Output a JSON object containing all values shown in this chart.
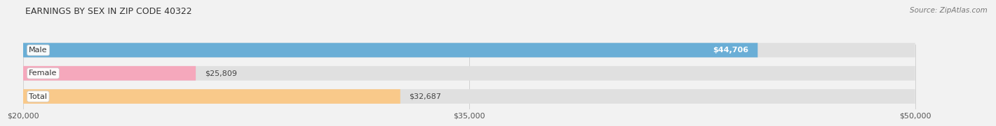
{
  "title": "EARNINGS BY SEX IN ZIP CODE 40322",
  "source": "Source: ZipAtlas.com",
  "categories": [
    "Male",
    "Female",
    "Total"
  ],
  "values": [
    44706,
    25809,
    32687
  ],
  "labels": [
    "$44,706",
    "$25,809",
    "$32,687"
  ],
  "label_inside": [
    true,
    false,
    false
  ],
  "bar_colors": [
    "#6AAED6",
    "#F5A8BC",
    "#F9C98A"
  ],
  "xmin": 20000,
  "xmax": 50000,
  "xticks": [
    20000,
    35000,
    50000
  ],
  "xtick_labels": [
    "$20,000",
    "$35,000",
    "$50,000"
  ],
  "bg_color": "#F2F2F2",
  "bar_bg_color": "#E0E0E0",
  "title_fontsize": 9,
  "label_fontsize": 8,
  "tick_fontsize": 8,
  "source_fontsize": 7.5
}
